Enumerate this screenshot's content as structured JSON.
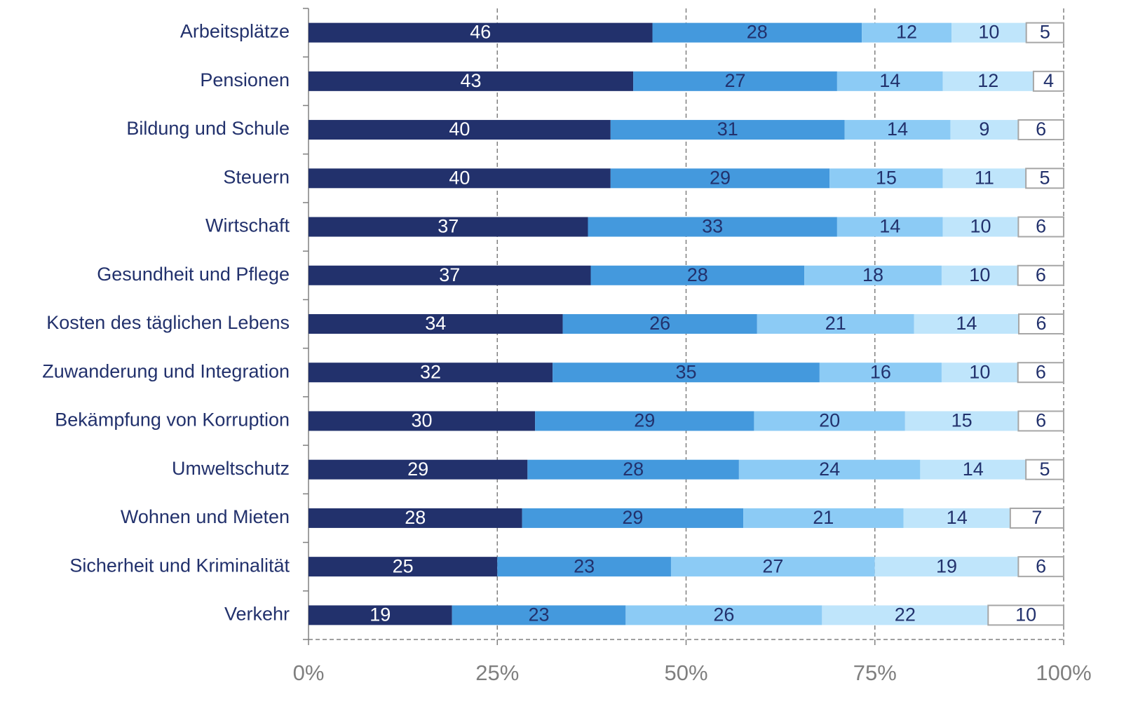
{
  "chart_data": {
    "type": "bar",
    "orientation": "horizontal",
    "stacking": "percent",
    "categories": [
      "Arbeitsplätze",
      "Pensionen",
      "Bildung und Schule",
      "Steuern",
      "Wirtschaft",
      "Gesundheit und Pflege",
      "Kosten des täglichen Lebens",
      "Zuwanderung und Integration",
      "Bekämpfung von Korruption",
      "Umweltschutz",
      "Wohnen und Mieten",
      "Sicherheit und Kriminalität",
      "Verkehr"
    ],
    "series": [
      {
        "color": "#22316c",
        "label_color": "#ffffff",
        "values": [
          46,
          43,
          40,
          40,
          37,
          37,
          34,
          32,
          30,
          29,
          28,
          25,
          19
        ]
      },
      {
        "color": "#4499dd",
        "label_color": "#22316c",
        "values": [
          28,
          27,
          31,
          29,
          33,
          28,
          26,
          35,
          29,
          28,
          29,
          23,
          23
        ]
      },
      {
        "color": "#8ccbf5",
        "label_color": "#22316c",
        "values": [
          12,
          14,
          14,
          15,
          14,
          18,
          21,
          16,
          20,
          24,
          21,
          27,
          26
        ]
      },
      {
        "color": "#bfe5fb",
        "label_color": "#22316c",
        "values": [
          10,
          12,
          9,
          11,
          10,
          10,
          14,
          10,
          15,
          14,
          14,
          19,
          22
        ]
      },
      {
        "color": "#ffffff",
        "label_color": "#22316c",
        "border": "#a6a6a6",
        "values": [
          5,
          4,
          6,
          5,
          6,
          6,
          6,
          6,
          6,
          5,
          7,
          6,
          10
        ]
      }
    ],
    "xlim": [
      0,
      100
    ],
    "xticks": [
      {
        "value": 0,
        "label": "0%"
      },
      {
        "value": 25,
        "label": "25%"
      },
      {
        "value": 50,
        "label": "50%"
      },
      {
        "value": 75,
        "label": "75%"
      },
      {
        "value": 100,
        "label": "100%"
      }
    ],
    "grid": true
  }
}
